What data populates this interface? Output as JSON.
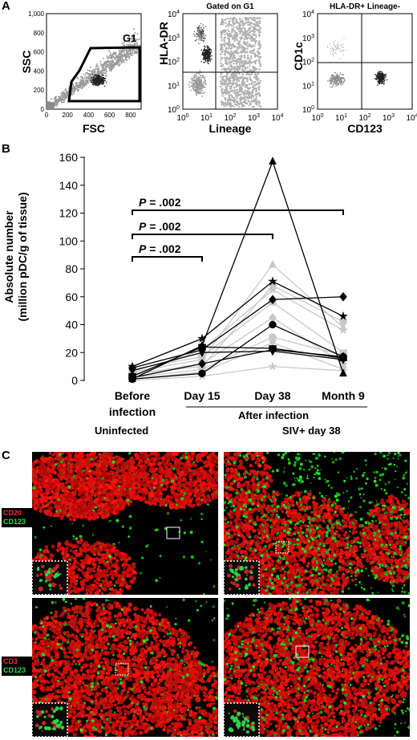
{
  "panel_letters": {
    "a": "A",
    "b": "B",
    "c": "C"
  },
  "flow": {
    "g1_label": "G1",
    "plot1": {
      "ylabel": "SSC",
      "xlabel": "FSC",
      "yticks": [
        "0",
        "200",
        "400",
        "600",
        "800",
        "1,000"
      ],
      "xticks": [
        "0",
        "200",
        "400",
        "600",
        "800"
      ]
    },
    "plot2": {
      "title": "Gated on G1",
      "ylabel": "HLA-DR",
      "xlabel": "Lineage"
    },
    "plot3": {
      "title": "HLA-DR+ Lineage-",
      "ylabel": "CD1c",
      "xlabel": "CD123"
    },
    "log_ticks": [
      {
        "base": "10",
        "exp": "0"
      },
      {
        "base": "10",
        "exp": "1"
      },
      {
        "base": "10",
        "exp": "2"
      },
      {
        "base": "10",
        "exp": "3"
      },
      {
        "base": "10",
        "exp": "4"
      }
    ]
  },
  "chart_data": {
    "type": "line",
    "ylabel_line1": "Absolute number",
    "ylabel_line2": "(million pDC/g of tissue)",
    "ylim": [
      0,
      160
    ],
    "yticks": [
      0,
      20,
      40,
      60,
      80,
      100,
      120,
      140,
      160
    ],
    "categories": [
      "Before infection",
      "Day 15",
      "Day 38",
      "Month 9"
    ],
    "category_labels": [
      {
        "line1": "Before",
        "line2": "infection"
      },
      {
        "line1": "Day 15",
        "line2": ""
      },
      {
        "line1": "Day 38",
        "line2": ""
      },
      {
        "line1": "Month 9",
        "line2": ""
      }
    ],
    "group_label": "After infection",
    "significance": [
      {
        "label": "P = .002",
        "from": 0,
        "to": 1
      },
      {
        "label": "P = .002",
        "from": 0,
        "to": 2
      },
      {
        "label": "P = .002",
        "from": 0,
        "to": 3
      }
    ],
    "series": [
      {
        "color": "#000000",
        "marker": "triangle",
        "values": [
          1,
          25,
          157,
          5
        ]
      },
      {
        "color": "#000000",
        "marker": "star",
        "values": [
          10,
          30,
          71,
          46
        ]
      },
      {
        "color": "#000000",
        "marker": "diamond",
        "values": [
          9,
          22,
          58,
          60
        ]
      },
      {
        "color": "#000000",
        "marker": "circle",
        "values": [
          1,
          5,
          40,
          17
        ]
      },
      {
        "color": "#000000",
        "marker": "square",
        "values": [
          3,
          24,
          23,
          16
        ]
      },
      {
        "color": "#000000",
        "marker": "triangle-down",
        "values": [
          7,
          20,
          21,
          15
        ]
      },
      {
        "color": "#000000",
        "marker": "diamond",
        "values": [
          2,
          12,
          22,
          17
        ]
      },
      {
        "color": "#c8c8c8",
        "marker": "triangle",
        "values": [
          6,
          15,
          83,
          38
        ]
      },
      {
        "color": "#c8c8c8",
        "marker": "circle",
        "values": [
          5,
          10,
          68,
          42
        ]
      },
      {
        "color": "#c8c8c8",
        "marker": "star",
        "values": [
          3,
          22,
          65,
          36
        ]
      },
      {
        "color": "#c8c8c8",
        "marker": "square",
        "values": [
          8,
          17,
          56,
          20
        ]
      },
      {
        "color": "#c8c8c8",
        "marker": "diamond",
        "values": [
          4,
          12,
          45,
          12
        ]
      },
      {
        "color": "#c8c8c8",
        "marker": "circle",
        "values": [
          2,
          8,
          31,
          18
        ]
      },
      {
        "color": "#c8c8c8",
        "marker": "triangle-down",
        "values": [
          1,
          6,
          27,
          8
        ]
      },
      {
        "color": "#c8c8c8",
        "marker": "star",
        "values": [
          0,
          3,
          10,
          7
        ]
      }
    ]
  },
  "micro": {
    "uninfected": "Uninfected",
    "siv": "SIV+ day 38",
    "row1_red": "CD20",
    "row1_green": "CD123",
    "row2_red": "CD3",
    "row2_green": "CD123"
  },
  "colors": {
    "red_stain": "#ff2a2a",
    "green_stain": "#22dd44",
    "gray_series": "#c8c8c8"
  }
}
